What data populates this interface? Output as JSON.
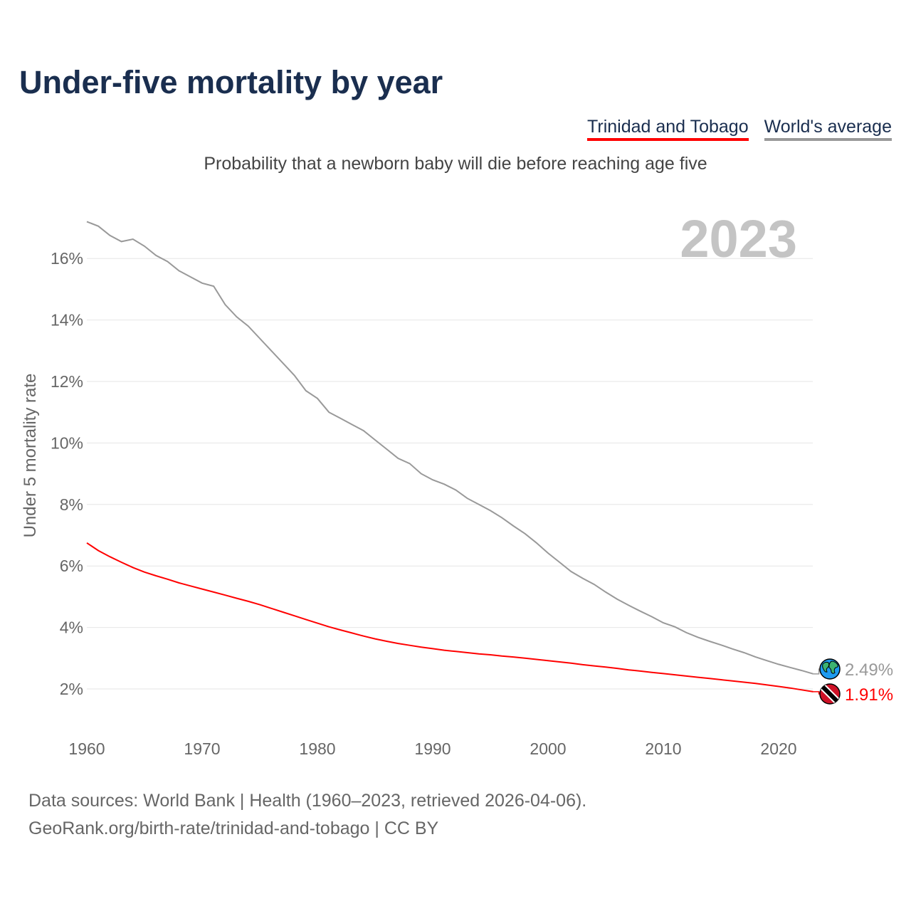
{
  "title": "Under-five mortality by year",
  "subtitle": "Probability that a newborn baby will die before reaching age five",
  "year_label": "2023",
  "sources": [
    "Data sources: World Bank | Health (1960–2023, retrieved 2026-04-06).",
    "GeoRank.org/birth-rate/trinidad-and-tobago | CC BY"
  ],
  "colors": {
    "tt": "#ff0000",
    "world": "#999999",
    "grid": "#e6e6e6"
  },
  "chart_data": {
    "type": "line",
    "title": "Under-five mortality by year",
    "ylabel": "Under 5 mortality rate",
    "xlabel": "",
    "xlim": [
      1960,
      2023
    ],
    "ylim": [
      0,
      17.5
    ],
    "grid": true,
    "legend": "top-right",
    "x_ticks": [
      1960,
      1970,
      1980,
      1990,
      2000,
      2010,
      2020
    ],
    "y_ticks": [
      2,
      4,
      6,
      8,
      10,
      12,
      14,
      16
    ],
    "y_tick_labels": [
      "2%",
      "4%",
      "6%",
      "8%",
      "10%",
      "12%",
      "14%",
      "16%"
    ],
    "x_start": 1960,
    "series": [
      {
        "name": "Trinidad and Tobago",
        "color": "#ff0000",
        "end_label": "1.91%",
        "icon": "trinidad-flag-icon",
        "values": [
          6.75,
          6.5,
          6.3,
          6.12,
          5.95,
          5.8,
          5.68,
          5.57,
          5.45,
          5.35,
          5.25,
          5.15,
          5.05,
          4.95,
          4.85,
          4.74,
          4.62,
          4.5,
          4.38,
          4.26,
          4.14,
          4.02,
          3.92,
          3.82,
          3.72,
          3.63,
          3.55,
          3.48,
          3.42,
          3.36,
          3.31,
          3.26,
          3.22,
          3.18,
          3.14,
          3.11,
          3.07,
          3.04,
          3.0,
          2.96,
          2.92,
          2.88,
          2.84,
          2.79,
          2.75,
          2.71,
          2.67,
          2.62,
          2.58,
          2.54,
          2.5,
          2.46,
          2.42,
          2.38,
          2.34,
          2.3,
          2.26,
          2.22,
          2.18,
          2.13,
          2.08,
          2.03,
          1.97,
          1.91
        ]
      },
      {
        "name": "World's average",
        "color": "#999999",
        "end_label": "2.49%",
        "icon": "globe-icon",
        "values": [
          17.2,
          17.05,
          16.75,
          16.55,
          16.63,
          16.4,
          16.1,
          15.9,
          15.6,
          15.4,
          15.2,
          15.1,
          14.5,
          14.1,
          13.8,
          13.4,
          13.0,
          12.6,
          12.2,
          11.7,
          11.45,
          11.0,
          10.8,
          10.6,
          10.4,
          10.1,
          9.8,
          9.5,
          9.33,
          9.0,
          8.8,
          8.66,
          8.47,
          8.2,
          8.0,
          7.8,
          7.57,
          7.3,
          7.05,
          6.75,
          6.42,
          6.12,
          5.82,
          5.6,
          5.4,
          5.15,
          4.92,
          4.72,
          4.53,
          4.35,
          4.15,
          4.02,
          3.83,
          3.68,
          3.55,
          3.43,
          3.3,
          3.18,
          3.04,
          2.92,
          2.8,
          2.7,
          2.6,
          2.49
        ]
      }
    ]
  }
}
